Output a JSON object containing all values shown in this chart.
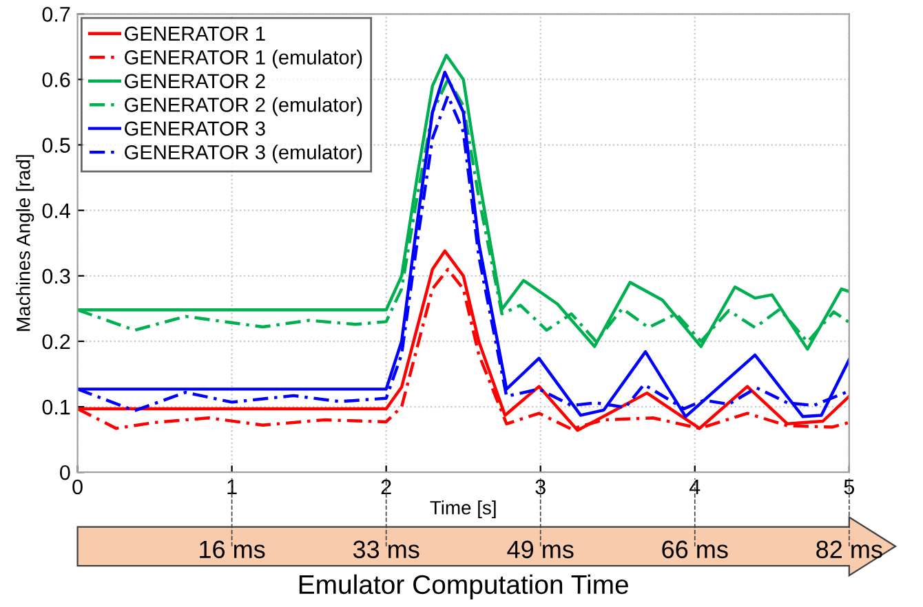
{
  "chart_data": {
    "type": "line",
    "xlabel": "Time [s]",
    "ylabel": "Machines Angle [rad]",
    "xlim": [
      0,
      5
    ],
    "xticks": [
      0,
      1,
      2,
      3,
      4,
      5
    ],
    "ylim": [
      0,
      0.7
    ],
    "yticks": [
      0,
      0.1,
      0.2,
      0.3,
      0.4,
      0.5,
      0.6,
      0.7
    ],
    "x2lim": [
      0,
      82
    ],
    "x2ticks": [
      {
        "value": 16.4,
        "label": "16 ms"
      },
      {
        "value": 32.8,
        "label": "33 ms"
      },
      {
        "value": 49.2,
        "label": "49 ms"
      },
      {
        "value": 65.6,
        "label": "66 ms"
      },
      {
        "value": 82,
        "label": "82 ms"
      }
    ],
    "x2label": "Emulator Computation Time",
    "grid": true,
    "legend": "top left",
    "series": [
      {
        "name": "GENERATOR 1",
        "color": "#ff0000",
        "line_style": "solid",
        "x": [
          0,
          2.0,
          2.1,
          2.2,
          2.3,
          2.38,
          2.5,
          2.6,
          2.77,
          2.99,
          3.24,
          3.69,
          4.03,
          4.34,
          4.6,
          4.83,
          5
        ],
        "values": [
          0.097,
          0.097,
          0.13,
          0.22,
          0.31,
          0.338,
          0.3,
          0.2,
          0.087,
          0.131,
          0.064,
          0.121,
          0.067,
          0.131,
          0.074,
          0.078,
          0.116
        ]
      },
      {
        "name": "GENERATOR 1 (emulator)",
        "color": "#ff0000",
        "line_style": "dashed",
        "x": [
          0,
          0.25,
          0.5,
          0.85,
          1.2,
          1.6,
          2.0,
          2.1,
          2.2,
          2.3,
          2.4,
          2.5,
          2.6,
          2.78,
          2.99,
          3.2,
          3.41,
          3.73,
          4.03,
          4.34,
          4.6,
          4.89,
          5
        ],
        "values": [
          0.097,
          0.067,
          0.076,
          0.083,
          0.072,
          0.08,
          0.077,
          0.1,
          0.19,
          0.28,
          0.31,
          0.28,
          0.18,
          0.074,
          0.09,
          0.066,
          0.08,
          0.083,
          0.067,
          0.09,
          0.071,
          0.069,
          0.076
        ]
      },
      {
        "name": "GENERATOR 2",
        "color": "#00b050",
        "line_style": "solid",
        "x": [
          0,
          2.0,
          2.1,
          2.2,
          2.3,
          2.39,
          2.5,
          2.6,
          2.75,
          2.89,
          3.11,
          3.35,
          3.58,
          3.79,
          4.04,
          4.26,
          4.39,
          4.5,
          4.73,
          4.95,
          5
        ],
        "values": [
          0.248,
          0.248,
          0.3,
          0.45,
          0.59,
          0.637,
          0.6,
          0.45,
          0.249,
          0.293,
          0.257,
          0.192,
          0.29,
          0.263,
          0.192,
          0.283,
          0.266,
          0.271,
          0.188,
          0.28,
          0.276
        ]
      },
      {
        "name": "GENERATOR 2 (emulator)",
        "color": "#00b050",
        "line_style": "dashed",
        "x": [
          0,
          0.37,
          0.7,
          1.2,
          1.5,
          1.8,
          2.0,
          2.1,
          2.2,
          2.3,
          2.4,
          2.5,
          2.6,
          2.75,
          2.87,
          3.04,
          3.2,
          3.36,
          3.53,
          3.7,
          3.88,
          4.04,
          4.22,
          4.39,
          4.55,
          4.73,
          4.9,
          5
        ],
        "values": [
          0.248,
          0.217,
          0.238,
          0.222,
          0.232,
          0.226,
          0.23,
          0.28,
          0.42,
          0.55,
          0.6,
          0.56,
          0.42,
          0.242,
          0.255,
          0.217,
          0.242,
          0.2,
          0.25,
          0.221,
          0.242,
          0.2,
          0.247,
          0.221,
          0.249,
          0.199,
          0.245,
          0.229
        ]
      },
      {
        "name": "GENERATOR 3",
        "color": "#0000ff",
        "line_style": "solid",
        "x": [
          0,
          2.0,
          2.1,
          2.2,
          2.3,
          2.38,
          2.5,
          2.6,
          2.78,
          2.99,
          3.26,
          3.41,
          3.68,
          3.94,
          4.39,
          4.7,
          4.82,
          5
        ],
        "values": [
          0.127,
          0.127,
          0.2,
          0.38,
          0.55,
          0.611,
          0.55,
          0.35,
          0.127,
          0.174,
          0.087,
          0.095,
          0.184,
          0.085,
          0.179,
          0.085,
          0.087,
          0.172
        ]
      },
      {
        "name": "GENERATOR 3 (emulator)",
        "color": "#0000ff",
        "line_style": "dashed",
        "x": [
          0,
          0.37,
          0.7,
          1.0,
          1.4,
          1.7,
          2.0,
          2.1,
          2.2,
          2.3,
          2.4,
          2.5,
          2.6,
          2.78,
          2.99,
          3.2,
          3.36,
          3.55,
          3.67,
          3.93,
          4.06,
          4.22,
          4.4,
          4.6,
          4.77,
          5
        ],
        "values": [
          0.127,
          0.094,
          0.122,
          0.107,
          0.117,
          0.108,
          0.113,
          0.18,
          0.35,
          0.51,
          0.575,
          0.52,
          0.33,
          0.116,
          0.127,
          0.102,
          0.106,
          0.099,
          0.134,
          0.097,
          0.11,
          0.104,
          0.129,
          0.106,
          0.102,
          0.124
        ]
      }
    ]
  }
}
